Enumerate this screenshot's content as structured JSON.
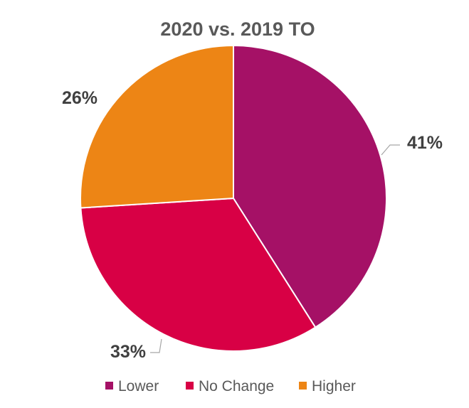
{
  "chart_data": {
    "type": "pie",
    "title": "2020 vs. 2019 TO",
    "categories": [
      "Lower",
      "No Change",
      "Higher"
    ],
    "values": [
      41,
      33,
      26
    ],
    "labels": [
      "41%",
      "33%",
      "26%"
    ],
    "colors": [
      "#A51166",
      "#D80045",
      "#ED8515"
    ],
    "legend_position": "bottom"
  }
}
